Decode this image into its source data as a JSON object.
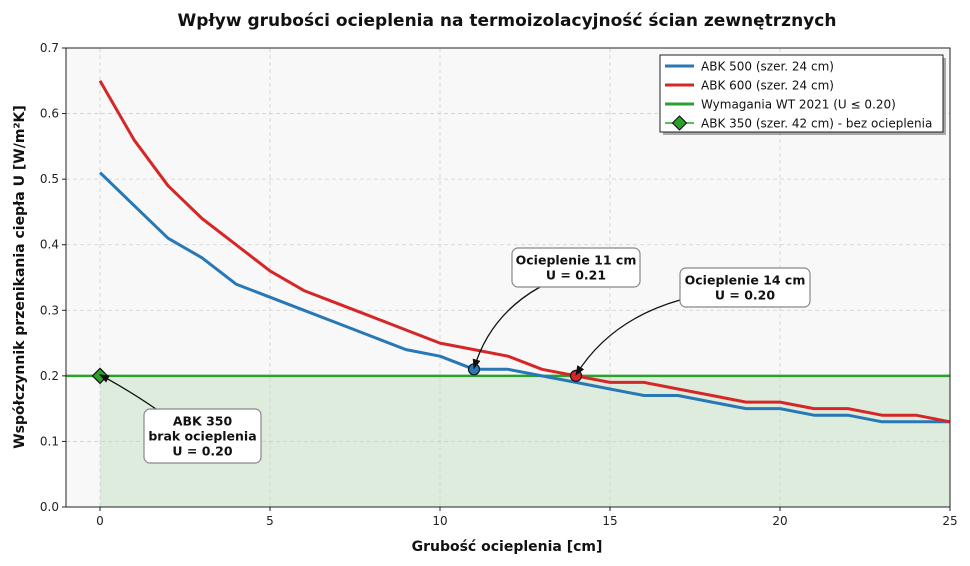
{
  "chart_data": {
    "type": "line",
    "title": "Wpływ grubości ocieplenia na termoizolacyjność ścian zewnętrznych",
    "xlabel": "Grubość ocieplenia [cm]",
    "ylabel": "Współczynnik przenikania ciepła U [W/m²K]",
    "xlim": [
      -1,
      25
    ],
    "ylim": [
      0,
      0.7
    ],
    "xticks": [
      0,
      5,
      10,
      15,
      20,
      25
    ],
    "yticks": [
      0.0,
      0.1,
      0.2,
      0.3,
      0.4,
      0.5,
      0.6,
      0.7
    ],
    "grid": true,
    "legend_position": "top-right",
    "colors": {
      "abk500": "#2878b5",
      "abk600": "#d62728",
      "requirement": "#2ca02c",
      "abk350": "#2ca02c",
      "compliant_fill": "#2ca02c",
      "plot_bg": "#f8f8f8"
    },
    "series": [
      {
        "name": "ABK 500 (szer. 24 cm)",
        "x": [
          0,
          1,
          2,
          3,
          4,
          5,
          6,
          7,
          8,
          9,
          10,
          11,
          12,
          13,
          14,
          15,
          16,
          17,
          18,
          19,
          20,
          21,
          22,
          23,
          24,
          25
        ],
        "values": [
          0.51,
          0.46,
          0.41,
          0.38,
          0.34,
          0.32,
          0.3,
          0.28,
          0.26,
          0.24,
          0.23,
          0.21,
          0.21,
          0.2,
          0.19,
          0.18,
          0.17,
          0.17,
          0.16,
          0.15,
          0.15,
          0.14,
          0.14,
          0.13,
          0.13,
          0.13
        ]
      },
      {
        "name": "ABK 600 (szer. 24 cm)",
        "x": [
          0,
          1,
          2,
          3,
          4,
          5,
          6,
          7,
          8,
          9,
          10,
          11,
          12,
          13,
          14,
          15,
          16,
          17,
          18,
          19,
          20,
          21,
          22,
          23,
          24,
          25
        ],
        "values": [
          0.65,
          0.56,
          0.49,
          0.44,
          0.4,
          0.36,
          0.33,
          0.31,
          0.29,
          0.27,
          0.25,
          0.24,
          0.23,
          0.21,
          0.2,
          0.19,
          0.19,
          0.18,
          0.17,
          0.16,
          0.16,
          0.15,
          0.15,
          0.14,
          0.14,
          0.13
        ]
      },
      {
        "name": "Wymagania WT 2021 (U ≤ 0.20)",
        "y": 0.2
      },
      {
        "name": "ABK 350 (szer. 42 cm) - bez ocieplenia",
        "x": [
          0
        ],
        "values": [
          0.2
        ]
      }
    ],
    "annotations": [
      {
        "lines": [
          "Ocieplenie 11 cm",
          "U = 0.21"
        ],
        "point": [
          11,
          0.21
        ]
      },
      {
        "lines": [
          "Ocieplenie 14 cm",
          "U = 0.20"
        ],
        "point": [
          14,
          0.2
        ]
      },
      {
        "lines": [
          "ABK 350",
          "brak ocieplenia",
          "U = 0.20"
        ],
        "point": [
          0,
          0.2
        ]
      }
    ]
  }
}
